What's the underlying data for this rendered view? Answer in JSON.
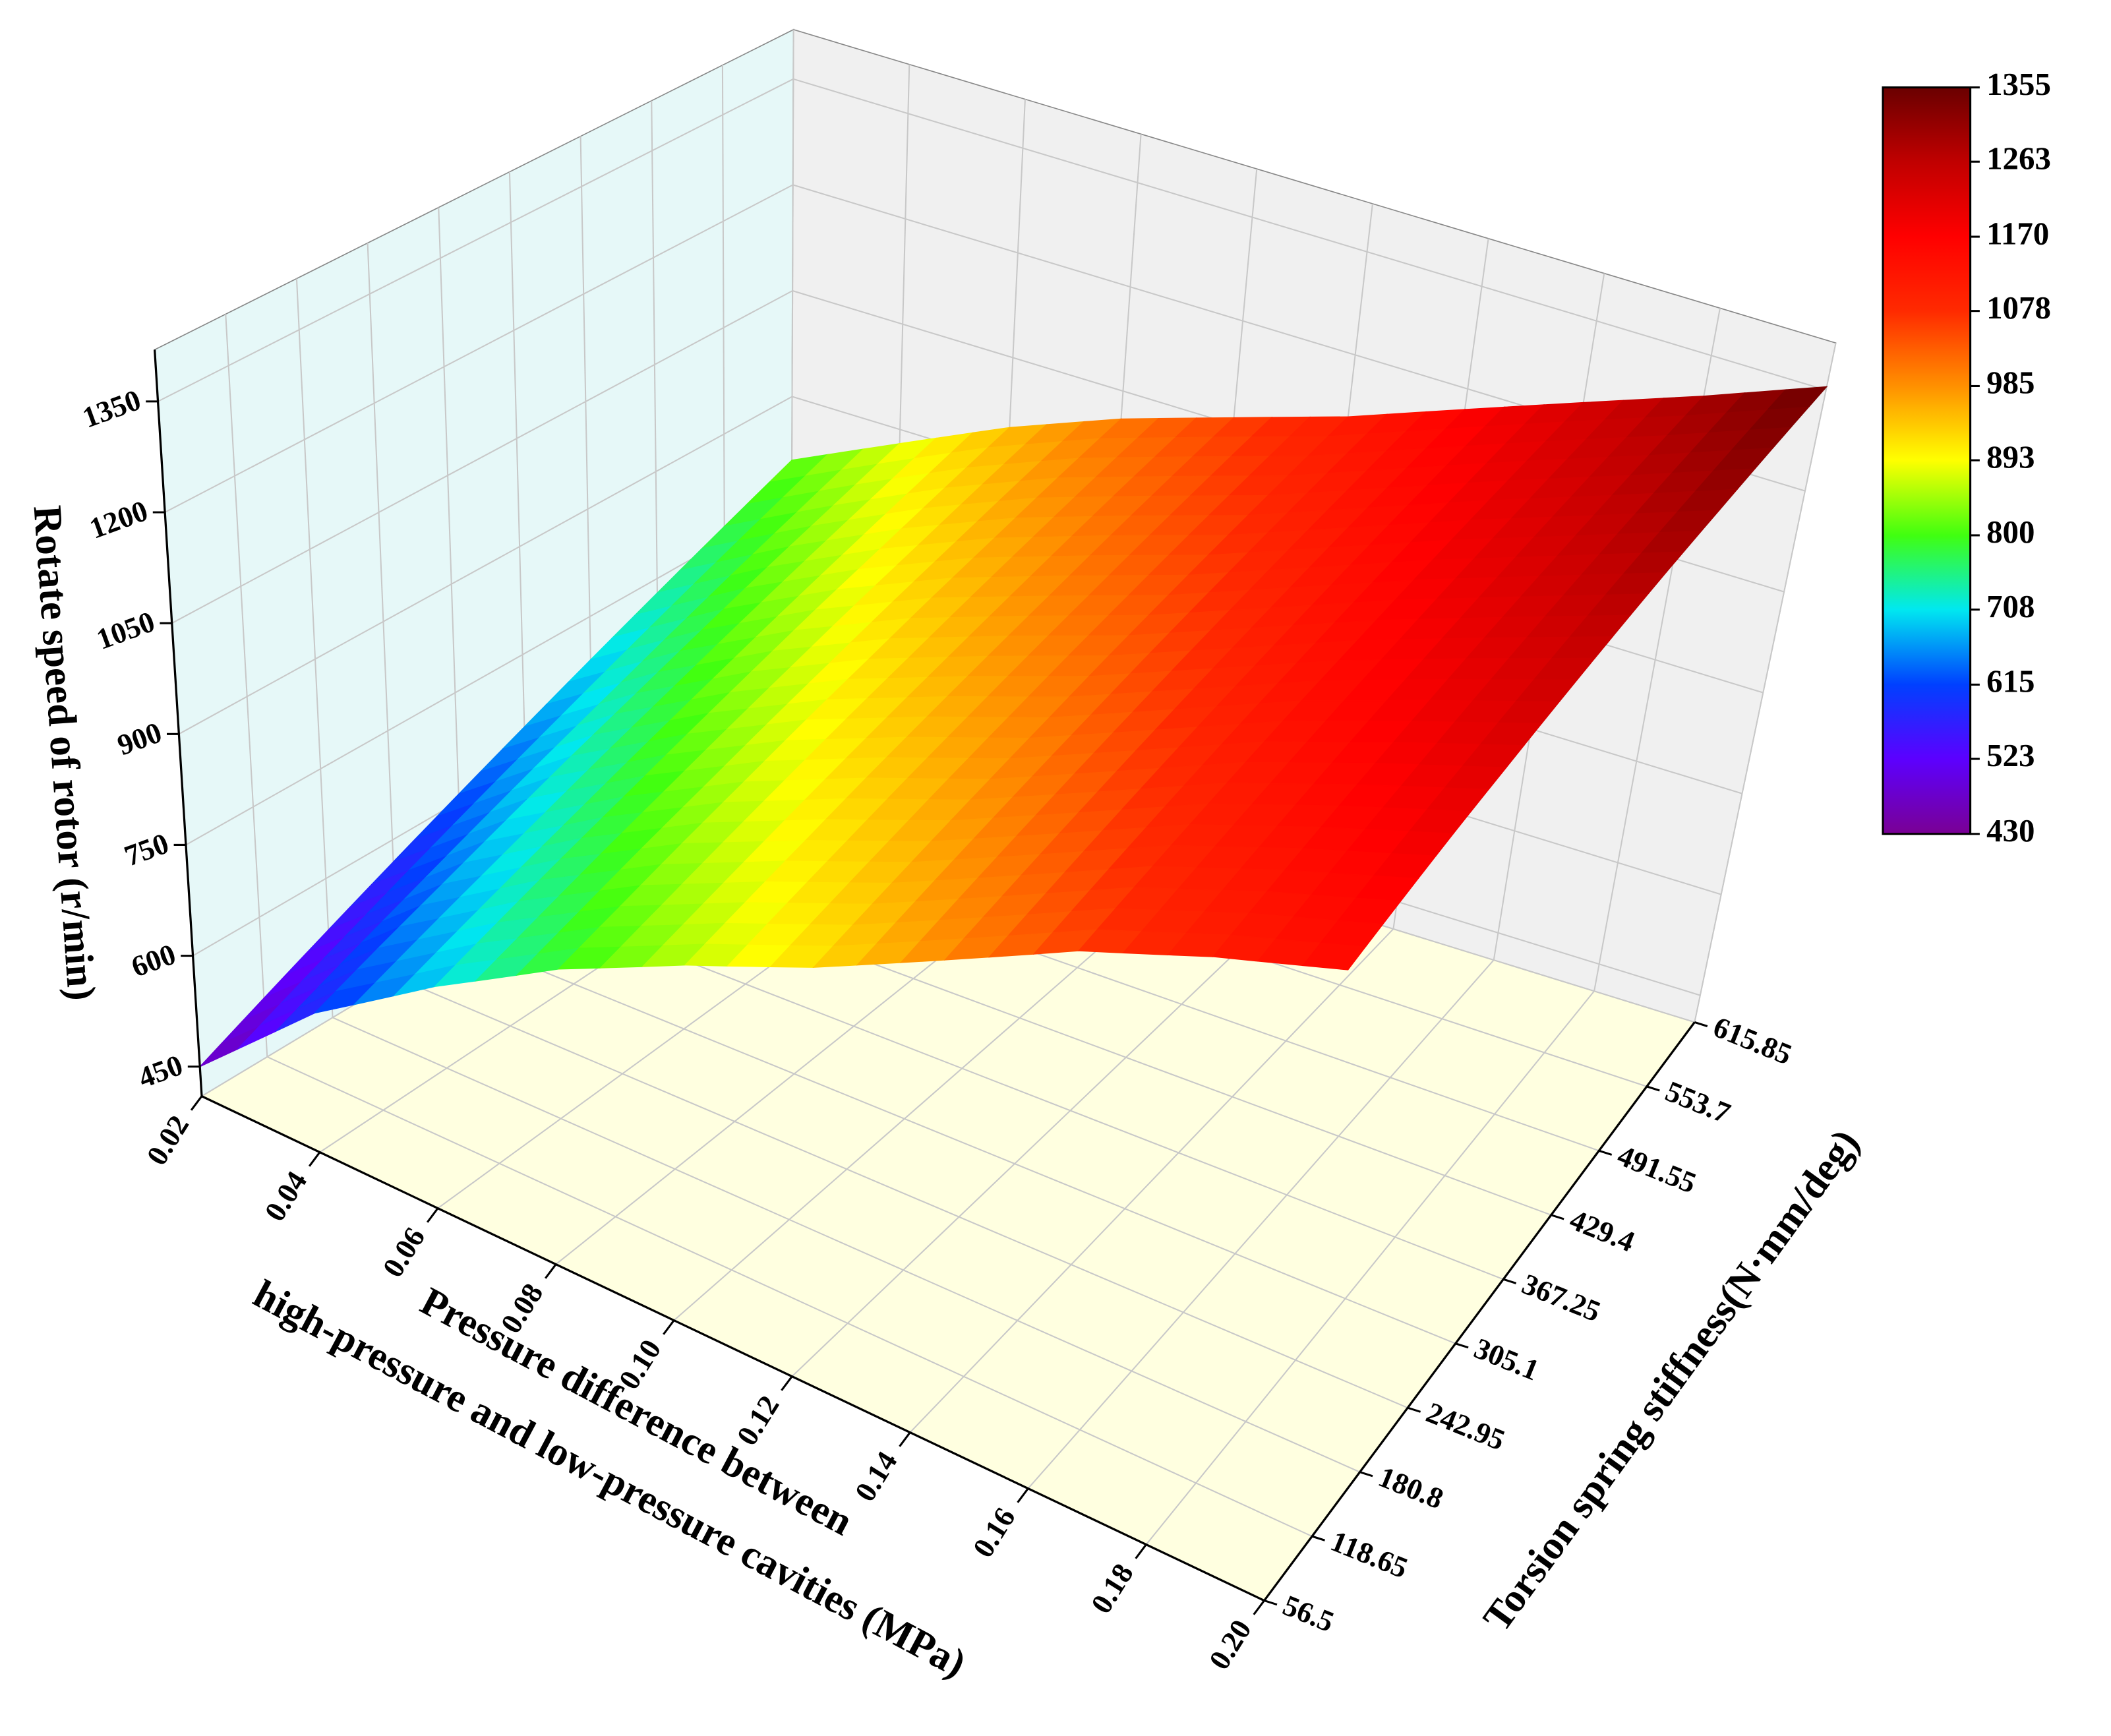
{
  "chart_data": {
    "type": "surface",
    "xlabel": [
      "Pressure difference between",
      "high-pressure and low-pressure cavities (MPa)"
    ],
    "ylabel": "Torsion spring stiffness(N·mm/deg)",
    "zlabel": "Rotate speed of rotor (r/min)",
    "x": [
      0.02,
      0.04,
      0.06,
      0.08,
      0.1,
      0.12,
      0.14,
      0.16,
      0.18,
      0.2
    ],
    "y": [
      56.5,
      118.65,
      180.8,
      242.95,
      305.1,
      367.25,
      429.4,
      491.55,
      553.7,
      615.85
    ],
    "z": [
      [
        450,
        595,
        700,
        790,
        860,
        920,
        990,
        1060,
        1110,
        1150
      ],
      [
        490,
        627,
        728,
        814,
        882,
        941,
        1010,
        1079,
        1130,
        1173
      ],
      [
        530,
        658,
        756,
        839,
        904,
        962,
        1030,
        1098,
        1150,
        1196
      ],
      [
        570,
        690,
        783,
        863,
        927,
        983,
        1050,
        1117,
        1170,
        1218
      ],
      [
        610,
        722,
        811,
        888,
        949,
        1004,
        1070,
        1136,
        1190,
        1241
      ],
      [
        650,
        753,
        839,
        912,
        971,
        1026,
        1090,
        1154,
        1210,
        1264
      ],
      [
        690,
        785,
        867,
        937,
        993,
        1047,
        1110,
        1173,
        1230,
        1287
      ],
      [
        730,
        817,
        894,
        961,
        1016,
        1068,
        1130,
        1192,
        1250,
        1309
      ],
      [
        770,
        848,
        922,
        986,
        1038,
        1089,
        1150,
        1211,
        1270,
        1332
      ],
      [
        810,
        880,
        950,
        1010,
        1060,
        1110,
        1170,
        1230,
        1290,
        1355
      ]
    ],
    "xlim": [
      0.02,
      0.2
    ],
    "ylim": [
      56.5,
      615.85
    ],
    "zlim": [
      410,
      1420
    ],
    "xticks": [
      0.02,
      0.04,
      0.06,
      0.08,
      {
        "value": 0.1,
        "label": "0.10"
      },
      0.12,
      0.14,
      0.16,
      0.18,
      {
        "value": 0.2,
        "label": "0.20"
      }
    ],
    "yticks": [
      56.5,
      118.65,
      180.8,
      242.95,
      305.1,
      367.25,
      429.4,
      491.55,
      553.7,
      615.85
    ],
    "zticks": [
      450,
      600,
      750,
      900,
      1050,
      1200,
      1350
    ],
    "clim": [
      430,
      1355
    ],
    "cticks": [
      430,
      523,
      615,
      708,
      800,
      893,
      985,
      1078,
      1170,
      1263,
      1355
    ],
    "colormap": [
      "#7a0094",
      "#5c00ff",
      "#0040ff",
      "#00e8f0",
      "#40ff10",
      "#ffff00",
      "#ff9000",
      "#ff2a00",
      "#ff0000",
      "#c00000",
      "#6a0000"
    ],
    "grid": true,
    "wall_colors": {
      "left": "#e6f8f8",
      "back": "#f0f0f0",
      "floor": "#ffffe0"
    }
  }
}
